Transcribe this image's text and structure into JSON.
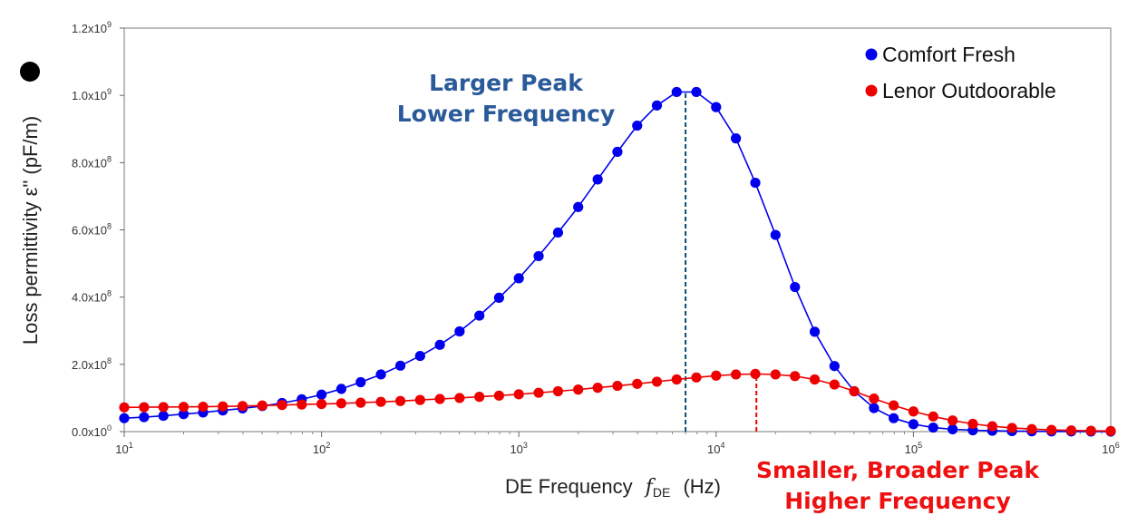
{
  "chart_data": {
    "type": "scatter",
    "xscale": "log",
    "xlim": [
      10,
      1000000
    ],
    "ylim": [
      0,
      1200000000
    ],
    "grid": false,
    "legend_position": "top-right",
    "xlabel": "DE Frequency",
    "xlabel_symbol": "f",
    "xlabel_subscript": "DE",
    "xlabel_unit": "(Hz)",
    "ylabel": "Loss permittivity  ε\"  (pF/m)",
    "xticks": [
      {
        "value": 10,
        "base": "10",
        "exp": "1"
      },
      {
        "value": 100,
        "base": "10",
        "exp": "2"
      },
      {
        "value": 1000,
        "base": "10",
        "exp": "3"
      },
      {
        "value": 10000,
        "base": "10",
        "exp": "4"
      },
      {
        "value": 100000,
        "base": "10",
        "exp": "5"
      },
      {
        "value": 1000000,
        "base": "10",
        "exp": "6"
      }
    ],
    "yticks": [
      {
        "value": 0,
        "mant": "0.0x10",
        "exp": "0"
      },
      {
        "value": 200000000,
        "mant": "2.0x10",
        "exp": "8"
      },
      {
        "value": 400000000,
        "mant": "4.0x10",
        "exp": "8"
      },
      {
        "value": 600000000,
        "mant": "6.0x10",
        "exp": "8"
      },
      {
        "value": 800000000,
        "mant": "8.0x10",
        "exp": "8"
      },
      {
        "value": 1000000000,
        "mant": "1.0x10",
        "exp": "9"
      },
      {
        "value": 1200000000,
        "mant": "1.2x10",
        "exp": "9"
      }
    ],
    "series": [
      {
        "name": "Comfort Fresh",
        "color": "#0000ee",
        "x": [
          10,
          12.6,
          15.8,
          20,
          25.1,
          31.6,
          39.8,
          50.1,
          63.1,
          79.4,
          100,
          126,
          158,
          200,
          251,
          316,
          398,
          501,
          631,
          794,
          1000,
          1260,
          1580,
          2000,
          2510,
          3160,
          3980,
          5010,
          6310,
          7940,
          10000,
          12600,
          15800,
          20000,
          25100,
          31600,
          39800,
          50100,
          63100,
          79400,
          100000,
          126000,
          158000,
          200000,
          251000,
          316000,
          398000,
          501000,
          631000,
          794000,
          1000000
        ],
        "y": [
          40000000,
          43000000,
          47000000,
          52000000,
          57000000,
          63000000,
          69000000,
          76000000,
          85000000,
          96000000,
          110000000,
          127000000,
          147000000,
          170000000,
          196000000,
          225000000,
          258000000,
          298000000,
          345000000,
          398000000,
          456000000,
          522000000,
          592000000,
          668000000,
          750000000,
          832000000,
          910000000,
          970000000,
          1010000000,
          1010000000,
          965000000,
          872000000,
          740000000,
          585000000,
          430000000,
          297000000,
          195000000,
          120000000,
          70000000,
          40000000,
          22000000,
          12000000,
          7000000,
          4000000,
          2500000,
          1500000,
          1000000,
          600000,
          400000,
          300000,
          200000
        ]
      },
      {
        "name": "Lenor Outdoorable",
        "color": "#ee0000",
        "x": [
          10,
          12.6,
          15.8,
          20,
          25.1,
          31.6,
          39.8,
          50.1,
          63.1,
          79.4,
          100,
          126,
          158,
          200,
          251,
          316,
          398,
          501,
          631,
          794,
          1000,
          1260,
          1580,
          2000,
          2510,
          3160,
          3980,
          5010,
          6310,
          7940,
          10000,
          12600,
          15800,
          20000,
          25100,
          31600,
          39800,
          50100,
          63100,
          79400,
          100000,
          126000,
          158000,
          200000,
          251000,
          316000,
          398000,
          501000,
          631000,
          794000,
          1000000
        ],
        "y": [
          72000000,
          72500000,
          73000000,
          73500000,
          74000000,
          75000000,
          76000000,
          77500000,
          79000000,
          80500000,
          82000000,
          84000000,
          86000000,
          88500000,
          91000000,
          94000000,
          97000000,
          100000000,
          103500000,
          107000000,
          111000000,
          115500000,
          120000000,
          125000000,
          130500000,
          136000000,
          142000000,
          148500000,
          155000000,
          161000000,
          166500000,
          170000000,
          171500000,
          170000000,
          165000000,
          155000000,
          140000000,
          120000000,
          98000000,
          78000000,
          60000000,
          45000000,
          33000000,
          23000000,
          16000000,
          11000000,
          7500000,
          5000000,
          3500000,
          2500000,
          1800000
        ]
      }
    ],
    "vlines": [
      {
        "x": 7000,
        "y": 1010000000,
        "color": "#0a4a6e"
      },
      {
        "x": 16000,
        "y": 171500000,
        "color": "#ee0000"
      }
    ],
    "annotations": [
      {
        "lines": [
          "Larger Peak",
          "Lower Frequency"
        ],
        "color": "#2a5a9a",
        "near_x": 1700,
        "position": "above-peak"
      },
      {
        "lines": [
          "Smaller, Broader Peak",
          "Higher Frequency"
        ],
        "color": "#ee1111",
        "near_x": 60000,
        "position": "below-axis"
      }
    ]
  }
}
